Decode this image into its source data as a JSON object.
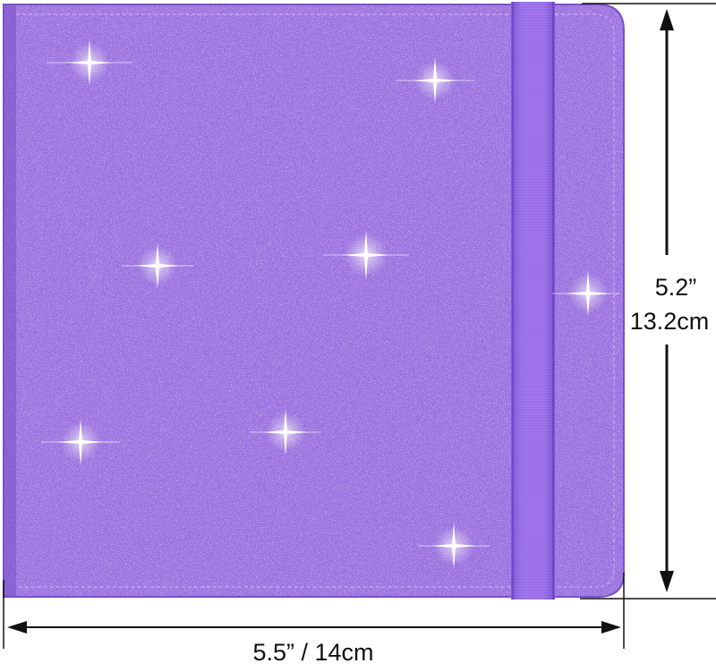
{
  "image": {
    "subject": "glitter-photo-album-cover",
    "colors": {
      "cover": "#9a6fe0",
      "cover_dark": "#7f52cc",
      "cover_light": "#c3a6f2",
      "band": "#9566e6",
      "band_edge": "#7a4fd0",
      "sparkle": "#ffffff",
      "dimension_line": "#111111"
    }
  },
  "dimensions": {
    "height_in": "5.2”",
    "height_cm": "13.2cm",
    "width": "5.5” / 14cm"
  },
  "icons": {
    "arrows": "double-headed-arrow",
    "sparkles": "star-sparkle"
  }
}
